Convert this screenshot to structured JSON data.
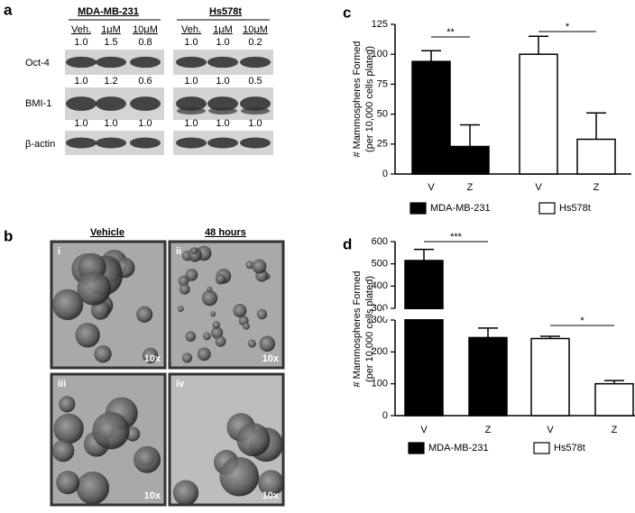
{
  "panel_a": {
    "label": "a",
    "cell_lines": [
      {
        "name": "MDA-MB-231",
        "treatments": [
          "Veh.",
          "1μM",
          "10μM"
        ]
      },
      {
        "name": "Hs578t",
        "treatments": [
          "Veh.",
          "1μM",
          "10μM"
        ]
      }
    ],
    "blots": [
      {
        "protein": "Oct-4",
        "ratios": [
          [
            "1.0",
            "1.5",
            "0.8"
          ],
          [
            "1.0",
            "1.0",
            "0.2"
          ]
        ]
      },
      {
        "protein": "BMI-1",
        "ratios": [
          [
            "1.0",
            "1.2",
            "0.6"
          ],
          [
            "1.0",
            "1.0",
            "0.5"
          ]
        ]
      },
      {
        "protein": "β-actin",
        "ratios": [
          [
            "1.0",
            "1.0",
            "1.0"
          ],
          [
            "1.0",
            "1.0",
            "1.0"
          ]
        ]
      }
    ]
  },
  "panel_b": {
    "label": "b",
    "columns": [
      "Vehicle",
      "48 hours"
    ],
    "images": [
      {
        "label": "i",
        "magnification": "10x"
      },
      {
        "label": "ii",
        "magnification": "10x"
      },
      {
        "label": "iii",
        "magnification": "10x"
      },
      {
        "label": "iv",
        "magnification": "10x"
      }
    ]
  },
  "chart_data": [
    {
      "type": "bar",
      "label": "c",
      "ylabel": [
        "# Mammospheres Formed",
        "(per 10,000 cells plated)"
      ],
      "categories": [
        "V",
        "Z",
        "V",
        "Z"
      ],
      "series": [
        {
          "name": "MDA-MB-231",
          "color": "#000000",
          "values": [
            94,
            23,
            null,
            null
          ],
          "errors": [
            9,
            18,
            null,
            null
          ]
        },
        {
          "name": "Hs578t",
          "color": "#ffffff",
          "values": [
            null,
            null,
            100,
            29
          ],
          "errors": [
            null,
            null,
            15,
            22
          ]
        }
      ],
      "ylim": [
        0,
        125
      ],
      "yticks": [
        0,
        25,
        50,
        75,
        100,
        125
      ],
      "annotations": [
        "**",
        "*"
      ]
    },
    {
      "type": "bar",
      "label": "d",
      "ylabel": [
        "# Mammospheres Formed",
        "(per 10,000 cells plated)"
      ],
      "categories": [
        "V",
        "Z",
        "V",
        "Z"
      ],
      "series": [
        {
          "name": "MDA-MB-231",
          "color": "#000000",
          "values": [
            515,
            245,
            null,
            null
          ],
          "errors": [
            50,
            30,
            null,
            null
          ]
        },
        {
          "name": "Hs578t",
          "color": "#ffffff",
          "values": [
            null,
            null,
            242,
            100
          ],
          "errors": [
            null,
            null,
            7,
            10
          ]
        }
      ],
      "segments": [
        {
          "ylim": [
            0,
            300
          ],
          "yticks": [
            0,
            100,
            200,
            300
          ]
        },
        {
          "ylim": [
            300,
            600
          ],
          "yticks": [
            300,
            400,
            500,
            600
          ]
        }
      ],
      "annotations": [
        "***",
        "*"
      ]
    }
  ]
}
